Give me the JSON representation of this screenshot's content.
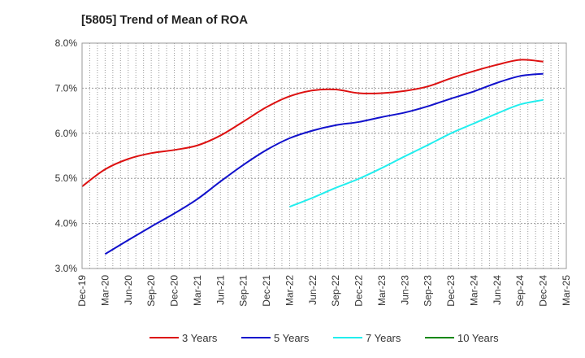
{
  "chart_data": {
    "type": "line",
    "title": "[5805]  Trend of Mean of ROA",
    "xlabel": "",
    "ylabel": "",
    "x_ticks": [
      "Dec-19",
      "Mar-20",
      "Jun-20",
      "Sep-20",
      "Dec-20",
      "Mar-21",
      "Jun-21",
      "Sep-21",
      "Dec-21",
      "Mar-22",
      "Jun-22",
      "Sep-22",
      "Dec-22",
      "Mar-23",
      "Jun-23",
      "Sep-23",
      "Dec-23",
      "Mar-24",
      "Jun-24",
      "Sep-24",
      "Dec-24",
      "Mar-25"
    ],
    "ylim": [
      3.0,
      8.0
    ],
    "y_ticks": [
      "3.0%",
      "4.0%",
      "5.0%",
      "6.0%",
      "7.0%",
      "8.0%"
    ],
    "y_tick_values": [
      3.0,
      4.0,
      5.0,
      6.0,
      7.0,
      8.0
    ],
    "grid": true,
    "legend_position": "bottom",
    "series": [
      {
        "name": "3 Years",
        "color": "#dd1111",
        "values": [
          4.82,
          5.2,
          5.43,
          5.56,
          5.63,
          5.73,
          5.95,
          6.26,
          6.58,
          6.82,
          6.95,
          6.97,
          6.89,
          6.89,
          6.94,
          7.04,
          7.22,
          7.38,
          7.52,
          7.63,
          7.59
        ]
      },
      {
        "name": "5 Years",
        "color": "#1111cc",
        "values": [
          null,
          3.32,
          3.63,
          3.93,
          4.22,
          4.54,
          4.93,
          5.3,
          5.63,
          5.89,
          6.06,
          6.18,
          6.25,
          6.36,
          6.46,
          6.6,
          6.77,
          6.93,
          7.12,
          7.27,
          7.32
        ]
      },
      {
        "name": "7 Years",
        "color": "#22eeee",
        "values": [
          null,
          null,
          null,
          null,
          null,
          null,
          null,
          null,
          null,
          4.37,
          4.57,
          4.79,
          4.99,
          5.23,
          5.49,
          5.74,
          6.0,
          6.22,
          6.44,
          6.64,
          6.74
        ]
      },
      {
        "name": "10 Years",
        "color": "#118811",
        "values": [
          null,
          null,
          null,
          null,
          null,
          null,
          null,
          null,
          null,
          null,
          null,
          null,
          null,
          null,
          null,
          null,
          null,
          null,
          null,
          null,
          null
        ]
      }
    ]
  }
}
